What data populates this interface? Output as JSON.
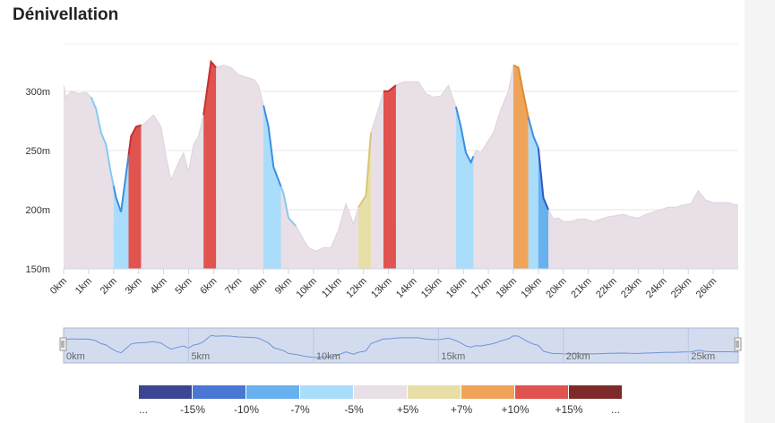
{
  "title": "Dénivellation",
  "chart_data": {
    "type": "area",
    "xlabel": "",
    "ylabel": "",
    "xlim": [
      0,
      27
    ],
    "ylim": [
      150,
      340
    ],
    "y_ticks": [
      150,
      200,
      250,
      300
    ],
    "y_tick_labels": [
      "150m",
      "200m",
      "250m",
      "300m"
    ],
    "x_ticks": [
      0,
      1,
      2,
      3,
      4,
      5,
      6,
      7,
      8,
      9,
      10,
      11,
      12,
      13,
      14,
      15,
      16,
      17,
      18,
      19,
      20,
      21,
      22,
      23,
      24,
      25,
      26
    ],
    "x_tick_labels": [
      "0km",
      "1km",
      "2km",
      "3km",
      "4km",
      "5km",
      "6km",
      "7km",
      "8km",
      "9km",
      "10km",
      "11km",
      "12km",
      "13km",
      "14km",
      "15km",
      "16km",
      "17km",
      "18km",
      "19km",
      "20km",
      "21km",
      "22km",
      "23km",
      "24km",
      "25km",
      "26km"
    ],
    "grid": "horizontal",
    "x": [
      0,
      0.1,
      0.3,
      0.6,
      0.9,
      1.1,
      1.3,
      1.5,
      1.7,
      1.9,
      2.1,
      2.3,
      2.5,
      2.7,
      2.9,
      3.2,
      3.6,
      3.9,
      4.1,
      4.3,
      4.6,
      4.8,
      5.0,
      5.2,
      5.4,
      5.6,
      5.9,
      6.1,
      6.4,
      6.7,
      7.0,
      7.3,
      7.6,
      7.8,
      8.0,
      8.2,
      8.4,
      8.6,
      8.8,
      9.0,
      9.3,
      9.6,
      9.8,
      10.1,
      10.4,
      10.7,
      11.0,
      11.3,
      11.6,
      11.8,
      12.1,
      12.3,
      12.6,
      12.8,
      13.0,
      13.3,
      13.6,
      13.9,
      14.2,
      14.5,
      14.8,
      15.1,
      15.4,
      15.7,
      15.9,
      16.1,
      16.3,
      16.5,
      16.7,
      16.9,
      17.2,
      17.5,
      17.8,
      18.0,
      18.2,
      18.4,
      18.6,
      18.8,
      19.0,
      19.2,
      19.4,
      19.6,
      19.8,
      20.0,
      20.3,
      20.6,
      20.9,
      21.2,
      21.5,
      21.8,
      22.1,
      22.4,
      22.7,
      23.0,
      23.3,
      23.6,
      23.9,
      24.2,
      24.5,
      24.8,
      25.1,
      25.4,
      25.7,
      26.0,
      26.3,
      26.6,
      26.9,
      27.0
    ],
    "y": [
      305,
      295,
      300,
      298,
      299,
      295,
      285,
      265,
      255,
      230,
      210,
      198,
      230,
      262,
      270,
      272,
      280,
      270,
      245,
      225,
      240,
      248,
      232,
      255,
      262,
      280,
      325,
      320,
      322,
      320,
      314,
      312,
      310,
      305,
      288,
      270,
      236,
      225,
      214,
      193,
      186,
      175,
      168,
      165,
      168,
      168,
      183,
      205,
      188,
      202,
      212,
      265,
      285,
      300,
      300,
      305,
      308,
      308,
      308,
      298,
      295,
      296,
      305,
      287,
      270,
      248,
      240,
      250,
      248,
      255,
      265,
      285,
      300,
      322,
      320,
      298,
      278,
      262,
      252,
      210,
      200,
      192,
      193,
      190,
      190,
      192,
      192,
      190,
      192,
      194,
      195,
      196,
      194,
      193,
      196,
      198,
      200,
      202,
      202,
      204,
      205,
      216,
      208,
      206,
      206,
      206,
      204,
      204
    ],
    "gradient_legend": [
      "...",
      "-15%",
      "-10%",
      "-7%",
      "-5%",
      "+5%",
      "+7%",
      "+10%",
      "+15%",
      "..."
    ],
    "gradient_colors": [
      "#3a4691",
      "#4a77d4",
      "#67b1ee",
      "#a9ddfb",
      "#e8e0e6",
      "#e8dfa8",
      "#efa45a",
      "#e0534f",
      "#7f2a2a"
    ],
    "segments": [
      {
        "from": 1.1,
        "to": 2.0,
        "class": "-5%"
      },
      {
        "from": 2.0,
        "to": 2.6,
        "class": "-7%"
      },
      {
        "from": 2.6,
        "to": 3.1,
        "class": "+10%"
      },
      {
        "from": 5.6,
        "to": 6.1,
        "class": "+10%"
      },
      {
        "from": 8.0,
        "to": 8.7,
        "class": "-7%"
      },
      {
        "from": 8.7,
        "to": 9.3,
        "class": "-5%"
      },
      {
        "from": 11.8,
        "to": 12.3,
        "class": "+5%"
      },
      {
        "from": 12.8,
        "to": 13.3,
        "class": "+10%"
      },
      {
        "from": 15.7,
        "to": 16.4,
        "class": "-7%"
      },
      {
        "from": 18.0,
        "to": 18.6,
        "class": "+7%"
      },
      {
        "from": 18.6,
        "to": 19.0,
        "class": "-7%"
      },
      {
        "from": 19.0,
        "to": 19.4,
        "class": "-10%"
      }
    ],
    "navigator_labels": [
      "0km",
      "5km",
      "10km",
      "15km",
      "20km",
      "25km"
    ],
    "navigator_positions": [
      0,
      5,
      10,
      15,
      20,
      25
    ]
  }
}
